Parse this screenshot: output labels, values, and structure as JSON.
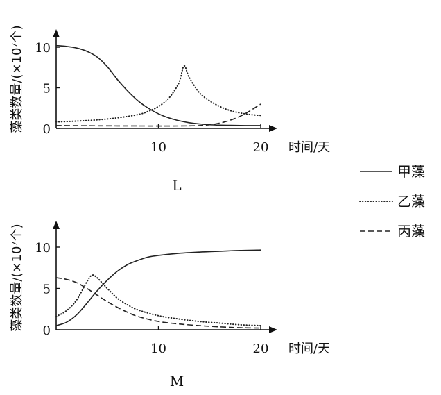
{
  "legend": {
    "position": "right",
    "entries": [
      {
        "label": "甲藻",
        "style": "solid"
      },
      {
        "label": "乙藻",
        "style": "dotted"
      },
      {
        "label": "丙藻",
        "style": "dashed"
      }
    ]
  },
  "chart_data": [
    {
      "type": "line",
      "panel_label": "L",
      "xlabel": "时间/天",
      "ylabel": "藻类数量/(×10⁷个)",
      "xlim": [
        0,
        20
      ],
      "ylim": [
        0,
        10
      ],
      "xticks": [
        "10",
        "20"
      ],
      "yticks": [
        "0",
        "5",
        "10"
      ],
      "grid": false,
      "series": [
        {
          "name": "甲藻",
          "style": "solid",
          "x": [
            0,
            1,
            2,
            3,
            4,
            5,
            6,
            7,
            8,
            9,
            10,
            11,
            12,
            13,
            14,
            15,
            16,
            17,
            18,
            19,
            20
          ],
          "y": [
            10.2,
            10.1,
            9.9,
            9.5,
            8.8,
            7.6,
            6.0,
            4.6,
            3.4,
            2.5,
            1.8,
            1.3,
            0.95,
            0.7,
            0.55,
            0.45,
            0.4,
            0.38,
            0.36,
            0.35,
            0.35
          ]
        },
        {
          "name": "乙藻",
          "style": "dotted",
          "x": [
            0,
            2,
            4,
            6,
            8,
            9,
            10,
            11,
            12,
            12.5,
            13,
            14,
            15,
            16,
            17,
            18,
            19,
            20
          ],
          "y": [
            0.8,
            0.9,
            1.05,
            1.3,
            1.7,
            2.1,
            2.7,
            3.7,
            5.6,
            7.7,
            6.3,
            4.4,
            3.4,
            2.7,
            2.2,
            1.9,
            1.7,
            1.6
          ]
        },
        {
          "name": "丙藻",
          "style": "dashed",
          "x": [
            0,
            4,
            8,
            12,
            14,
            15,
            16,
            17,
            18,
            19,
            20
          ],
          "y": [
            0.35,
            0.32,
            0.3,
            0.3,
            0.35,
            0.45,
            0.65,
            1.0,
            1.5,
            2.2,
            3.0
          ]
        }
      ]
    },
    {
      "type": "line",
      "panel_label": "M",
      "xlabel": "时间/天",
      "ylabel": "藻类数量/(×10⁷个)",
      "xlim": [
        0,
        20
      ],
      "ylim": [
        0,
        10
      ],
      "xticks": [
        "10",
        "20"
      ],
      "yticks": [
        "0",
        "5",
        "10"
      ],
      "grid": false,
      "series": [
        {
          "name": "甲藻",
          "style": "solid",
          "x": [
            0,
            1,
            2,
            3,
            4,
            5,
            6,
            7,
            8,
            9,
            10,
            12,
            14,
            16,
            18,
            20
          ],
          "y": [
            0.5,
            0.9,
            1.8,
            3.2,
            4.7,
            6.0,
            7.1,
            7.9,
            8.4,
            8.8,
            9.0,
            9.25,
            9.4,
            9.5,
            9.6,
            9.65
          ]
        },
        {
          "name": "乙藻",
          "style": "dotted",
          "x": [
            0,
            1,
            2,
            3,
            3.5,
            4,
            5,
            6,
            7,
            8,
            10,
            12,
            14,
            16,
            18,
            20
          ],
          "y": [
            1.6,
            2.3,
            3.6,
            5.8,
            6.6,
            6.3,
            5.0,
            3.8,
            3.0,
            2.4,
            1.7,
            1.3,
            1.0,
            0.8,
            0.6,
            0.5
          ]
        },
        {
          "name": "丙藻",
          "style": "dashed",
          "x": [
            0,
            1,
            2,
            3,
            4,
            5,
            6,
            7,
            8,
            10,
            12,
            14,
            16,
            18,
            20
          ],
          "y": [
            6.3,
            6.1,
            5.7,
            5.0,
            4.2,
            3.4,
            2.7,
            2.1,
            1.6,
            1.0,
            0.7,
            0.5,
            0.35,
            0.25,
            0.2
          ]
        }
      ]
    }
  ]
}
